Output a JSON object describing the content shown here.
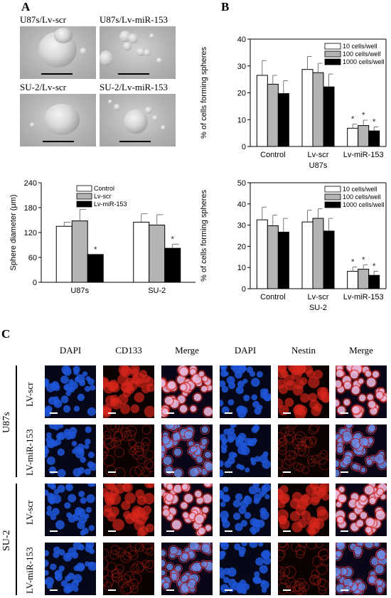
{
  "panel_labels": {
    "a": "A",
    "b": "B",
    "c": "C"
  },
  "micrographs": [
    {
      "label": "U87s/Lv-scr"
    },
    {
      "label": "U87s/Lv-miR-153"
    },
    {
      "label": "SU-2/Lv-scr"
    },
    {
      "label": "SU-2/Lv-miR-153"
    }
  ],
  "colors": {
    "white_bar": "#ffffff",
    "grey_bar": "#b4b4b4",
    "black_bar": "#000000",
    "dapi": "#1e56d8",
    "marker": "#d8261c"
  },
  "chart_data": [
    {
      "type": "bar",
      "id": "sphere-diameter",
      "categories": [
        "U87s",
        "SU-2"
      ],
      "series": [
        {
          "name": "Control",
          "values": [
            135,
            145
          ],
          "errors": [
            10,
            20
          ]
        },
        {
          "name": "Lv-scr",
          "values": [
            148,
            138
          ],
          "errors": [
            28,
            25
          ]
        },
        {
          "name": "Lv-miR-153",
          "values": [
            67,
            82
          ],
          "errors": [
            0,
            10
          ]
        }
      ],
      "ylabel": "Sphere diameter (μm)",
      "ylim": [
        0,
        240
      ],
      "yticks": [
        "0",
        "60",
        "120",
        "180",
        "240"
      ],
      "annotations": [
        "*",
        "*"
      ],
      "legend": "top-right"
    },
    {
      "type": "bar",
      "id": "spheres-u87s",
      "categories": [
        "Control",
        "Lv-scr",
        "Lv-miR-153"
      ],
      "series": [
        {
          "name": "10 cells/well",
          "values": [
            26.5,
            28.7,
            6.8
          ],
          "errors": [
            5.5,
            4.8,
            1.5
          ]
        },
        {
          "name": "100 cells/well",
          "values": [
            23.2,
            27.5,
            7.8
          ],
          "errors": [
            3.3,
            3.5,
            2.0
          ]
        },
        {
          "name": "1000 cells/well",
          "values": [
            19.7,
            22.2,
            5.8
          ],
          "errors": [
            4.8,
            4.8,
            1.5
          ]
        }
      ],
      "xlabel": "U87s",
      "ylabel": "% of cells forming spheres",
      "ylim": [
        0,
        40
      ],
      "yticks": [
        "0",
        "10",
        "20",
        "30",
        "40"
      ],
      "annotations": [
        "*",
        "*",
        "*"
      ],
      "legend": "top-right"
    },
    {
      "type": "bar",
      "id": "spheres-su2",
      "categories": [
        "Control",
        "Lv-scr",
        "Lv-miR-153"
      ],
      "series": [
        {
          "name": "10 cells/well",
          "values": [
            32.5,
            31.5,
            8.2
          ],
          "errors": [
            6,
            5.5,
            2.0
          ]
        },
        {
          "name": "100 cells/well",
          "values": [
            29.7,
            33.2,
            9.2
          ],
          "errors": [
            5,
            4.5,
            2.0
          ]
        },
        {
          "name": "1000 cells/well",
          "values": [
            26.7,
            27.2,
            6.3
          ],
          "errors": [
            6.5,
            6,
            2.0
          ]
        }
      ],
      "xlabel": "SU-2",
      "ylabel": "% of cells forming spheres",
      "ylim": [
        0,
        50
      ],
      "yticks": [
        "0",
        "10",
        "20",
        "30",
        "40",
        "50"
      ],
      "annotations": [
        "*",
        "*",
        "*"
      ],
      "legend": "top-right"
    }
  ],
  "fluorescence": {
    "headers": [
      "DAPI",
      "CD133",
      "Merge",
      "DAPI",
      "Nestin",
      "Merge"
    ],
    "groups": [
      {
        "name": "U87s",
        "rows": [
          "LV-scr",
          "LV-miR-153"
        ]
      },
      {
        "name": "SU-2",
        "rows": [
          "LV-scr",
          "LV-miR-153"
        ]
      }
    ]
  }
}
